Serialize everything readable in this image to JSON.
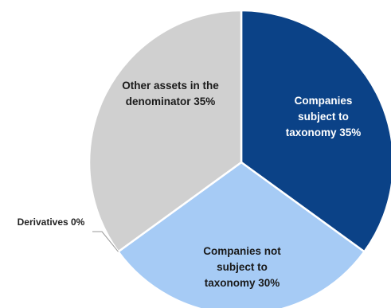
{
  "chart_data": {
    "type": "pie",
    "slices": [
      {
        "label_lines": [
          "Companies",
          "subject to",
          "taxonomy 35%"
        ],
        "value": 35,
        "color": "#0b4287",
        "label_color": "#ffffff"
      },
      {
        "label_lines": [
          "Companies not",
          "subject to",
          "taxonomy 30%"
        ],
        "value": 30,
        "color": "#a6cbf5",
        "label_color": "#1a1a1a"
      },
      {
        "label_lines": [
          "Derivatives 0%"
        ],
        "value": 0,
        "color": "#7f7f7f",
        "label_color": "#222222",
        "outside": true
      },
      {
        "label_lines": [
          "Other assets in the",
          "denominator 35%"
        ],
        "value": 35,
        "color": "#d0d0d0",
        "label_color": "#1a1a1a"
      }
    ]
  }
}
